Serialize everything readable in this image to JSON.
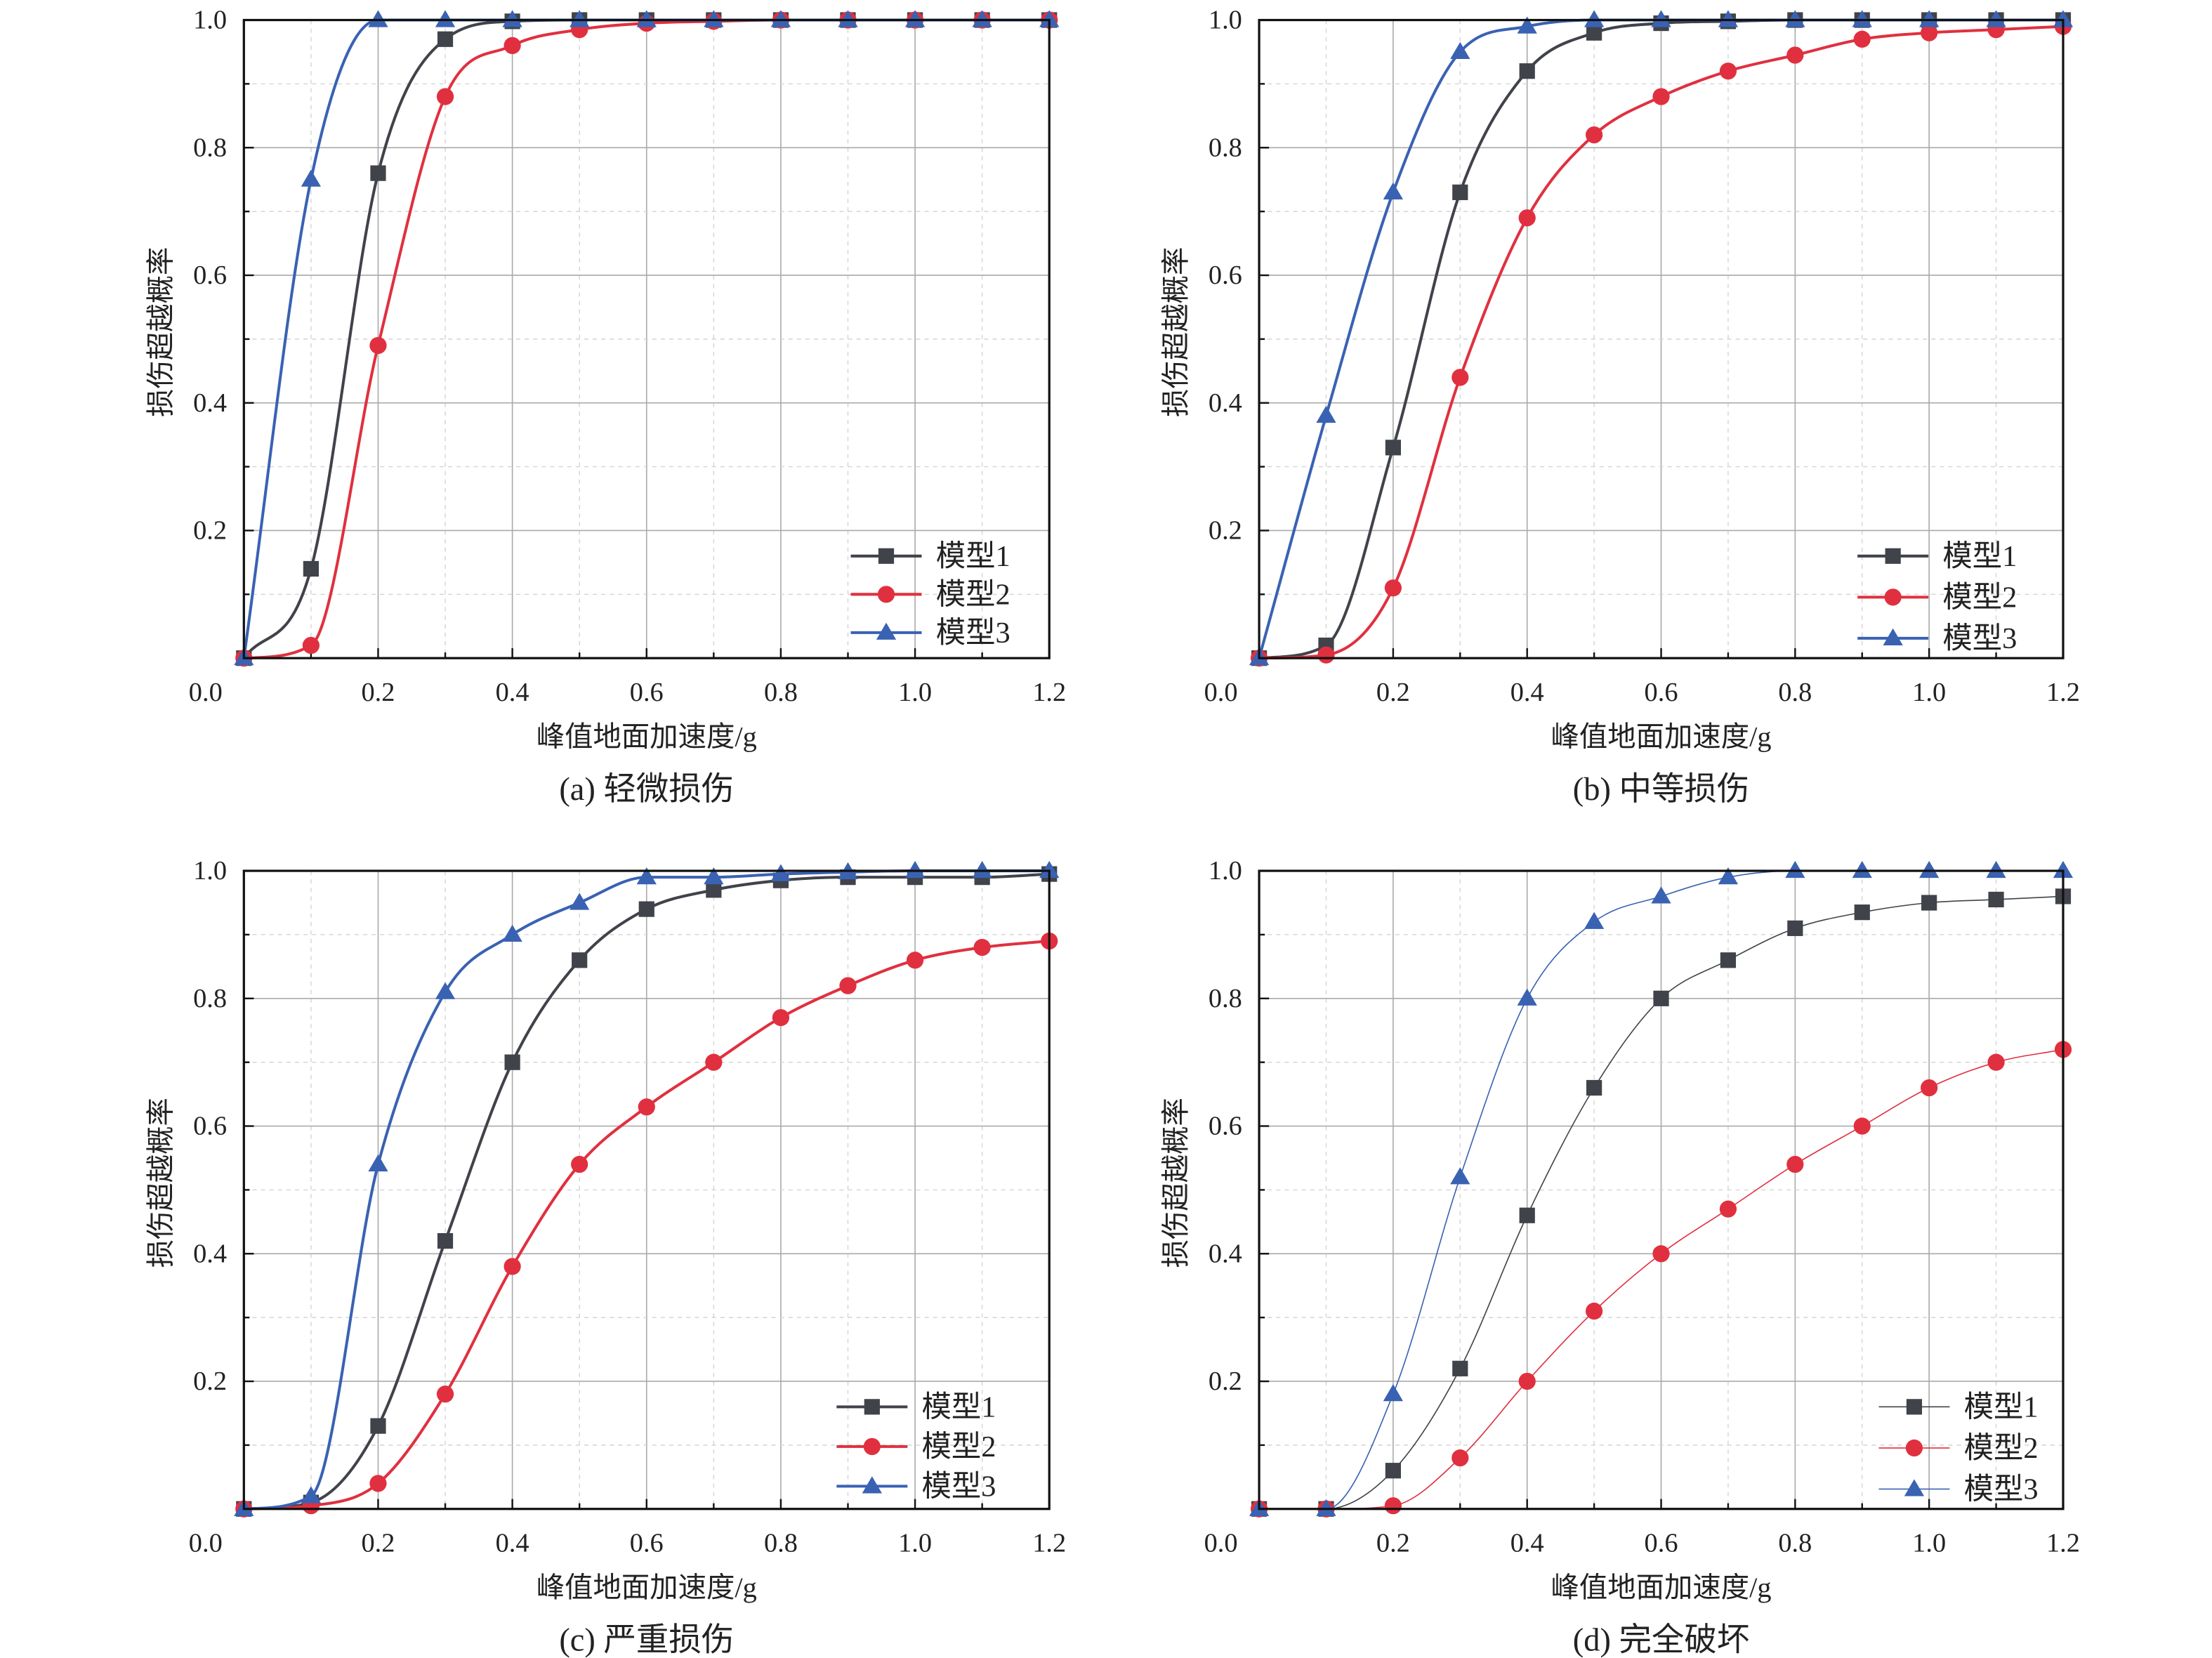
{
  "colors": {
    "model1": "#404349",
    "model2": "#e0303f",
    "model3": "#3a62b3",
    "grid": "#b0b0b0"
  },
  "chart_data": [
    {
      "type": "line",
      "caption": "(a) 轻微损伤",
      "xlabel": "峰值地面加速度/g",
      "ylabel": "损伤超越概率",
      "xlim": [
        0,
        1.2
      ],
      "ylim": [
        0,
        1.0
      ],
      "xticks": [
        "0.0",
        "0.2",
        "0.4",
        "0.6",
        "0.8",
        "1.0",
        "1.2"
      ],
      "yticks": [
        "0.2",
        "0.4",
        "0.6",
        "0.8",
        "1.0"
      ],
      "grid": true,
      "legend_position": "bottom-right",
      "x": [
        0,
        0.1,
        0.2,
        0.3,
        0.4,
        0.5,
        0.6,
        0.7,
        0.8,
        0.9,
        1.0,
        1.1,
        1.2
      ],
      "series": [
        {
          "name": "模型1",
          "marker": "square",
          "values": [
            0,
            0.14,
            0.76,
            0.97,
            0.998,
            1,
            1,
            1,
            1,
            1,
            1,
            1,
            1
          ]
        },
        {
          "name": "模型2",
          "marker": "circle",
          "values": [
            0,
            0.02,
            0.49,
            0.88,
            0.96,
            0.985,
            0.995,
            0.998,
            1,
            1,
            1,
            1,
            1
          ]
        },
        {
          "name": "模型3",
          "marker": "triangle",
          "values": [
            0,
            0.75,
            1,
            1,
            1,
            1,
            1,
            1,
            1,
            1,
            1,
            1,
            1
          ]
        }
      ]
    },
    {
      "type": "line",
      "caption": "(b) 中等损伤",
      "xlabel": "峰值地面加速度/g",
      "ylabel": "损伤超越概率",
      "xlim": [
        0,
        1.2
      ],
      "ylim": [
        0,
        1.0
      ],
      "xticks": [
        "0.0",
        "0.2",
        "0.4",
        "0.6",
        "0.8",
        "1.0",
        "1.2"
      ],
      "yticks": [
        "0.2",
        "0.4",
        "0.6",
        "0.8",
        "1.0"
      ],
      "grid": true,
      "legend_position": "bottom-right",
      "x": [
        0,
        0.1,
        0.2,
        0.3,
        0.4,
        0.5,
        0.6,
        0.7,
        0.8,
        0.9,
        1.0,
        1.1,
        1.2
      ],
      "series": [
        {
          "name": "模型1",
          "marker": "square",
          "values": [
            0,
            0.02,
            0.33,
            0.73,
            0.92,
            0.98,
            0.995,
            0.998,
            1,
            1,
            1,
            1,
            1
          ]
        },
        {
          "name": "模型2",
          "marker": "circle",
          "values": [
            0,
            0.005,
            0.11,
            0.44,
            0.69,
            0.82,
            0.88,
            0.92,
            0.945,
            0.97,
            0.98,
            0.985,
            0.99
          ]
        },
        {
          "name": "模型3",
          "marker": "triangle",
          "values": [
            0,
            0.38,
            0.73,
            0.95,
            0.99,
            1,
            1,
            1,
            1,
            1,
            1,
            1,
            1
          ]
        }
      ]
    },
    {
      "type": "line",
      "caption": "(c) 严重损伤",
      "xlabel": "峰值地面加速度/g",
      "ylabel": "损伤超越概率",
      "xlim": [
        0,
        1.2
      ],
      "ylim": [
        0,
        1.0
      ],
      "xticks": [
        "0.0",
        "0.2",
        "0.4",
        "0.6",
        "0.8",
        "1.0",
        "1.2"
      ],
      "yticks": [
        "0.2",
        "0.4",
        "0.6",
        "0.8",
        "1.0"
      ],
      "grid": true,
      "legend_position": "bottom-right",
      "x": [
        0,
        0.1,
        0.2,
        0.3,
        0.4,
        0.5,
        0.6,
        0.7,
        0.8,
        0.9,
        1.0,
        1.1,
        1.2
      ],
      "series": [
        {
          "name": "模型1",
          "marker": "square",
          "values": [
            0,
            0.01,
            0.13,
            0.42,
            0.7,
            0.86,
            0.94,
            0.97,
            0.985,
            0.99,
            0.99,
            0.99,
            0.995
          ]
        },
        {
          "name": "模型2",
          "marker": "circle",
          "values": [
            0,
            0.005,
            0.04,
            0.18,
            0.38,
            0.54,
            0.63,
            0.7,
            0.77,
            0.82,
            0.86,
            0.88,
            0.89
          ]
        },
        {
          "name": "模型3",
          "marker": "triangle",
          "values": [
            0,
            0.02,
            0.54,
            0.81,
            0.9,
            0.95,
            0.99,
            0.99,
            0.995,
            0.998,
            1,
            1,
            1
          ]
        }
      ]
    },
    {
      "type": "line",
      "caption": "(d) 完全破坏",
      "xlabel": "峰值地面加速度/g",
      "ylabel": "损伤超越概率",
      "xlim": [
        0,
        1.2
      ],
      "ylim": [
        0,
        1.0
      ],
      "xticks": [
        "0.0",
        "0.2",
        "0.4",
        "0.6",
        "0.8",
        "1.0",
        "1.2"
      ],
      "yticks": [
        "0.2",
        "0.4",
        "0.6",
        "0.8",
        "1.0"
      ],
      "grid": true,
      "legend_position": "bottom-right",
      "x": [
        0,
        0.1,
        0.2,
        0.3,
        0.4,
        0.5,
        0.6,
        0.7,
        0.8,
        0.9,
        1.0,
        1.1,
        1.2
      ],
      "series": [
        {
          "name": "模型1",
          "marker": "square",
          "values": [
            0,
            0,
            0.06,
            0.22,
            0.46,
            0.66,
            0.8,
            0.86,
            0.91,
            0.935,
            0.95,
            0.955,
            0.96
          ]
        },
        {
          "name": "模型2",
          "marker": "circle",
          "values": [
            0,
            0,
            0.005,
            0.08,
            0.2,
            0.31,
            0.4,
            0.47,
            0.54,
            0.6,
            0.66,
            0.7,
            0.72
          ]
        },
        {
          "name": "模型3",
          "marker": "triangle",
          "values": [
            0,
            0,
            0.18,
            0.52,
            0.8,
            0.92,
            0.96,
            0.99,
            1,
            1,
            1,
            1,
            1
          ]
        }
      ]
    }
  ]
}
